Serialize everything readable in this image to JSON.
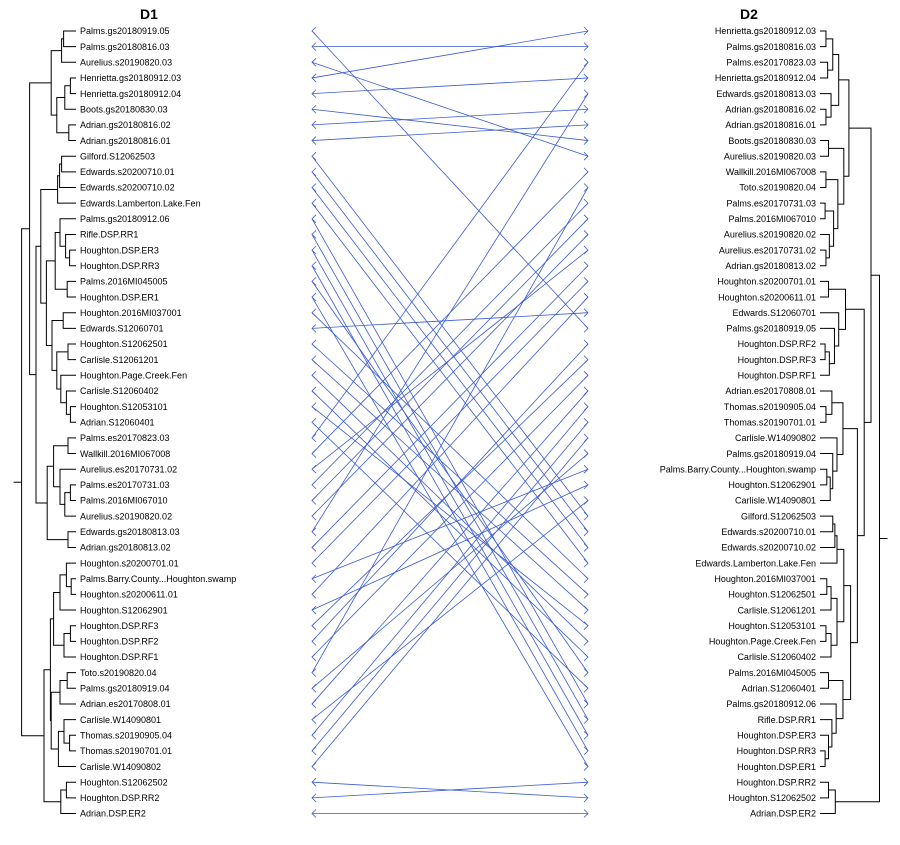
{
  "left_title": "D1",
  "right_title": "D2",
  "colors": {
    "connector": "#3a5bd0",
    "tree": "#000000",
    "background": "#ffffff"
  },
  "left_labels": [
    "Palms.gs20180919.05",
    "Palms.gs20180816.03",
    "Aurelius.s20190820.03",
    "Henrietta.gs20180912.03",
    "Henrietta.gs20180912.04",
    "Boots.gs20180830.03",
    "Adrian.gs20180816.02",
    "Adrian.gs20180816.01",
    "Gilford.S12062503",
    "Edwards.s20200710.01",
    "Edwards.s20200710.02",
    "Edwards.Lamberton.Lake.Fen",
    "Palms.gs20180912.06",
    "Rifle.DSP.RR1",
    "Houghton.DSP.ER3",
    "Houghton.DSP.RR3",
    "Palms.2016MI045005",
    "Houghton.DSP.ER1",
    "Houghton.2016MI037001",
    "Edwards.S12060701",
    "Houghton.S12062501",
    "Carlisle.S12061201",
    "Houghton.Page.Creek.Fen",
    "Carlisle.S12060402",
    "Houghton.S12053101",
    "Adrian.S12060401",
    "Palms.es20170823.03",
    "Wallkill.2016MI067008",
    "Aurelius.es20170731.02",
    "Palms.es20170731.03",
    "Palms.2016MI067010",
    "Aurelius.s20190820.02",
    "Edwards.gs20180813.03",
    "Adrian.gs20180813.02",
    "Houghton.s20200701.01",
    "Palms.Barry.County...Houghton.swamp",
    "Houghton.s20200611.01",
    "Houghton.S12062901",
    "Houghton.DSP.RF3",
    "Houghton.DSP.RF2",
    "Houghton.DSP.RF1",
    "Toto.s20190820.04",
    "Palms.gs20180919.04",
    "Adrian.es20170808.01",
    "Carlisle.W14090801",
    "Thomas.s20190905.04",
    "Thomas.s20190701.01",
    "Carlisle.W14090802",
    "Houghton.S12062502",
    "Houghton.DSP.RR2",
    "Adrian.DSP.ER2"
  ],
  "right_labels": [
    "Henrietta.gs20180912.03",
    "Palms.gs20180816.03",
    "Palms.es20170823.03",
    "Henrietta.gs20180912.04",
    "Edwards.gs20180813.03",
    "Adrian.gs20180816.02",
    "Adrian.gs20180816.01",
    "Boots.gs20180830.03",
    "Aurelius.s20190820.03",
    "Wallkill.2016MI067008",
    "Toto.s20190820.04",
    "Palms.es20170731.03",
    "Palms.2016MI067010",
    "Aurelius.s20190820.02",
    "Aurelius.es20170731.02",
    "Adrian.gs20180813.02",
    "Houghton.s20200701.01",
    "Houghton.s20200611.01",
    "Edwards.S12060701",
    "Palms.gs20180919.05",
    "Houghton.DSP.RF2",
    "Houghton.DSP.RF3",
    "Houghton.DSP.RF1",
    "Adrian.es20170808.01",
    "Thomas.s20190905.04",
    "Thomas.s20190701.01",
    "Carlisle.W14090802",
    "Palms.gs20180919.04",
    "Palms.Barry.County...Houghton.swamp",
    "Houghton.S12062901",
    "Carlisle.W14090801",
    "Gilford.S12062503",
    "Edwards.s20200710.01",
    "Edwards.s20200710.02",
    "Edwards.Lamberton.Lake.Fen",
    "Houghton.2016MI037001",
    "Houghton.S12062501",
    "Carlisle.S12061201",
    "Houghton.S12053101",
    "Houghton.Page.Creek.Fen",
    "Carlisle.S12060402",
    "Palms.2016MI045005",
    "Adrian.S12060401",
    "Palms.gs20180912.06",
    "Rifle.DSP.RR1",
    "Houghton.DSP.ER3",
    "Houghton.DSP.RR3",
    "Houghton.DSP.ER1",
    "Houghton.DSP.RR2",
    "Houghton.S12062502",
    "Adrian.DSP.ER2"
  ]
}
